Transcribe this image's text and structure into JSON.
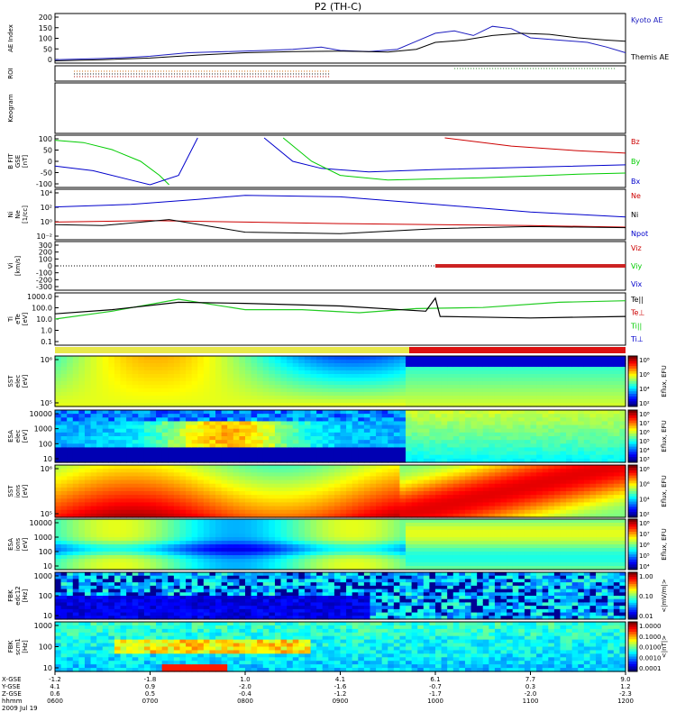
{
  "chart_data": {
    "type": "multi-panel stack plot",
    "title": "P2 (TH-C)",
    "panels": [
      {
        "id": "ae",
        "ylabel": "AE Index",
        "ticks": [
          "200",
          "150",
          "100",
          "50",
          "0"
        ],
        "legend": [
          {
            "name": "Kyoto AE",
            "color": "#1c1cbf"
          },
          {
            "name": "Themis AE",
            "color": "#000000"
          }
        ],
        "series": [
          {
            "name": "Kyoto AE",
            "x": [
              6.0,
              6.5,
              6.8,
              7.0,
              7.4,
              7.8,
              8.2,
              8.5,
              8.8,
              9.0,
              9.3,
              9.6,
              9.8,
              10.0,
              10.2,
              10.4,
              10.6,
              10.8,
              11.0,
              11.3,
              11.6,
              11.8,
              12.0
            ],
            "y": [
              15,
              20,
              25,
              30,
              45,
              50,
              55,
              60,
              70,
              55,
              50,
              60,
              95,
              130,
              140,
              120,
              160,
              150,
              110,
              100,
              90,
              70,
              45
            ]
          },
          {
            "name": "Themis AE",
            "x": [
              6.0,
              6.5,
              7.0,
              7.5,
              8.0,
              8.5,
              9.0,
              9.5,
              9.8,
              10.0,
              10.3,
              10.6,
              10.9,
              11.2,
              11.5,
              11.8,
              12.0
            ],
            "y": [
              10,
              15,
              22,
              35,
              45,
              50,
              52,
              48,
              60,
              90,
              100,
              120,
              130,
              125,
              110,
              100,
              95
            ]
          }
        ]
      },
      {
        "id": "roi",
        "ylabel": "ROI"
      },
      {
        "id": "keogram",
        "ylabel": "Keogram"
      },
      {
        "id": "bfit",
        "ylabel": "B FIT",
        "ylabel2": "GSE",
        "unit": "[nT]",
        "ticks": [
          "100",
          "50",
          "0",
          "-50",
          "-100"
        ],
        "legend": [
          {
            "name": "Bz",
            "color": "#cc0000"
          },
          {
            "name": "By",
            "color": "#00cc00"
          },
          {
            "name": "Bx",
            "color": "#0000cc"
          }
        ]
      },
      {
        "id": "density",
        "ylabel": "Ni",
        "ylabel2": "Ne",
        "unit": "[1/cc]",
        "ticks": [
          "10⁴",
          "10²",
          "10⁰",
          "10⁻²"
        ],
        "legend": [
          {
            "name": "Ne",
            "color": "#cc0000"
          },
          {
            "name": "Ni",
            "color": "#000000"
          },
          {
            "name": "Npot",
            "color": "#0000cc"
          }
        ]
      },
      {
        "id": "velocity",
        "ylabel": "Vi",
        "unit": "[km/s]",
        "ticks": [
          "300",
          "200",
          "100",
          "0",
          "-100",
          "-200",
          "-300"
        ],
        "legend": [
          {
            "name": "Viz",
            "color": "#cc0000"
          },
          {
            "name": "Viy",
            "color": "#00cc00"
          },
          {
            "name": "Vix",
            "color": "#0000cc"
          }
        ]
      },
      {
        "id": "temperature",
        "ylabel": "Ti",
        "ylabel2": "eTe",
        "unit": "[eV]",
        "ticks": [
          "1000.0",
          "100.0",
          "10.0",
          "1.0",
          "0.1"
        ],
        "legend": [
          {
            "name": "Te||",
            "color": "#000000"
          },
          {
            "name": "Te⊥",
            "color": "#cc0000"
          },
          {
            "name": "Ti||",
            "color": "#00cc00"
          },
          {
            "name": "Ti⊥",
            "color": "#0000cc"
          }
        ]
      },
      {
        "id": "sst_e",
        "ylabel": "SST",
        "ylabel2": "elec",
        "unit": "[eV]",
        "ticks": [
          "10⁶",
          "10⁵"
        ],
        "cbar_label": "Eflux, EFU",
        "cbar_ticks": [
          "10⁸",
          "10⁶",
          "10⁴",
          "10²"
        ]
      },
      {
        "id": "esa_e",
        "ylabel": "ESA",
        "ylabel2": "elec",
        "unit": "[eV]",
        "ticks": [
          "10000",
          "1000",
          "100",
          "10"
        ],
        "cbar_label": "Eflux, EFU",
        "cbar_ticks": [
          "10⁸",
          "10⁷",
          "10⁶",
          "10⁵",
          "10⁴",
          "10³"
        ]
      },
      {
        "id": "sst_i",
        "ylabel": "SST",
        "ylabel2": "ions",
        "unit": "[eV]",
        "ticks": [
          "10⁶",
          "10⁵"
        ],
        "cbar_label": "Eflux, EFU",
        "cbar_ticks": [
          "10⁸",
          "10⁶",
          "10⁴",
          "10²"
        ]
      },
      {
        "id": "esa_i",
        "ylabel": "ESA",
        "ylabel2": "ions",
        "unit": "[eV]",
        "ticks": [
          "10000",
          "1000",
          "100",
          "10"
        ],
        "cbar_label": "Eflux, EFU",
        "cbar_ticks": [
          "10⁸",
          "10⁷",
          "10⁶",
          "10⁵",
          "10⁴"
        ]
      },
      {
        "id": "fbk_edc",
        "ylabel": "FBK",
        "ylabel2": "edc12",
        "unit": "[Hz]",
        "ticks": [
          "1000",
          "100",
          "10"
        ],
        "cbar_label": "<|mV/m|>",
        "cbar_ticks": [
          "1.00",
          "0.10",
          "0.01"
        ]
      },
      {
        "id": "fbk_scm",
        "ylabel": "FBK",
        "ylabel2": "scm1",
        "unit": "[Hz]",
        "ticks": [
          "1000",
          "100",
          "10"
        ],
        "cbar_label": "<|nT|>",
        "cbar_ticks": [
          "1.0000",
          "0.1000",
          "0.0100",
          "0.0010",
          "0.0001"
        ]
      }
    ],
    "x_axis": {
      "row_labels": [
        "X-GSE",
        "Y-GSE",
        "Z-GSE",
        "hhmm",
        "2009 Jul 19"
      ],
      "columns": [
        {
          "x": "-1.2",
          "y": "4.1",
          "z": "0.6",
          "t": "0600"
        },
        {
          "x": "-1.8",
          "y": "0.9",
          "z": "0.5",
          "t": "0700"
        },
        {
          "x": "1.0",
          "y": "-2.0",
          "z": "-0.4",
          "t": "0800"
        },
        {
          "x": "4.1",
          "y": "-1.6",
          "z": "-1.2",
          "t": "0900"
        },
        {
          "x": "6.1",
          "y": "-0.7",
          "z": "-1.7",
          "t": "1000"
        },
        {
          "x": "7.7",
          "y": "0.3",
          "z": "-2.0",
          "t": "1100"
        },
        {
          "x": "9.0",
          "y": "1.2",
          "z": "-2.3",
          "t": "1200"
        }
      ]
    }
  }
}
